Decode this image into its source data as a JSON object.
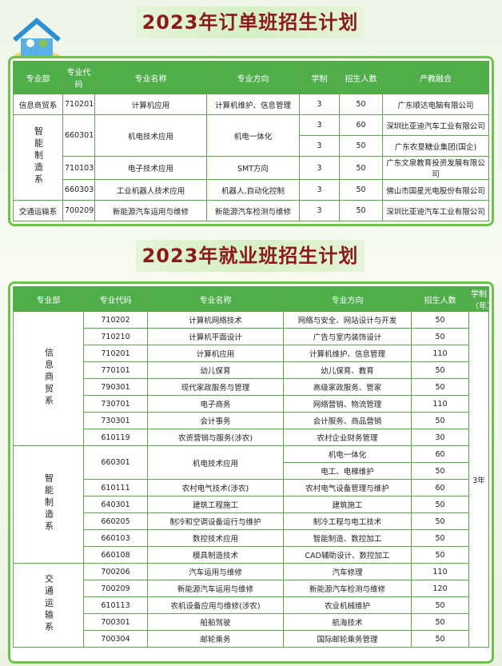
{
  "table1": {
    "title": "2023年订单班招生计划",
    "headers": [
      "专业部",
      "专业代码",
      "专业名称",
      "专业方向",
      "学制",
      "招生人数",
      "产教融合"
    ],
    "rows": [
      [
        "信息商贸系",
        "710201",
        "计算机应用",
        "计算机维护、信息管理",
        3,
        50,
        "广东顺达电脑有限公司"
      ],
      [
        "智能制造系",
        "660301",
        "机电技术应用",
        "机电一体化",
        3,
        60,
        "深圳比亚迪汽车工业有限公司"
      ],
      [
        3,
        50,
        "广东农垦糖业集团(国企)"
      ],
      [
        "710103",
        "电子技术应用",
        "SMT方向",
        3,
        50,
        "广东文泉教育投资发展有限公司"
      ],
      [
        "660303",
        "工业机器人技术应用",
        "机器人,自动化控制",
        3,
        50,
        "佛山市国星光电股份有限公司"
      ],
      [
        "交通运输系",
        "700209",
        "新能源汽车运用与维修",
        "新能源汽车检测与维修",
        3,
        50,
        "深圳比亚迪汽车工业有限公司"
      ]
    ]
  },
  "table2": {
    "title": "2023年就业班招生计划",
    "headers": [
      "专业部",
      "专业代码",
      "专业名称",
      "专业方向",
      "招生人数",
      "学制（年）"
    ],
    "rows": [
      [
        "信息商贸系",
        "710202",
        "计算机网络技术",
        "网络与安全、网站设计与开发",
        50,
        "3年"
      ],
      [
        "710210",
        "计算机平面设计",
        "广告与室内装饰设计",
        50
      ],
      [
        "710201",
        "计算机应用",
        "计算机维护、信息管理",
        110
      ],
      [
        "770101",
        "幼儿保育",
        "幼儿保育、教育",
        50
      ],
      [
        "790301",
        "现代家政服务与管理",
        "高级家政服务、管家",
        50
      ],
      [
        "730701",
        "电子商务",
        "网络营销、物流管理",
        110
      ],
      [
        "730301",
        "会计事务",
        "会计服务、商品营销",
        50
      ],
      [
        "610119",
        "农资营销与服务(涉农)",
        "农村企业财务管理",
        30
      ],
      [
        "智能制造系",
        "660301",
        "机电技术应用",
        "机电一体化",
        60
      ],
      [
        "电工、电梯维护",
        50
      ],
      [
        "610111",
        "农村电气技术(涉农)",
        "农村电气设备管理与维护",
        60
      ],
      [
        "640301",
        "建筑工程施工",
        "建筑施工",
        50
      ],
      [
        "660205",
        "制冷和空调设备运行与维护",
        "制冷工程与电工技术",
        50
      ],
      [
        "660103",
        "数控技术应用",
        "智能制造、数控加工",
        50
      ],
      [
        "660108",
        "模具制造技术",
        "CAD辅助设计、数控加工",
        50
      ],
      [
        "交通运输系",
        "700206",
        "汽车运用与维修",
        "汽车修理",
        110
      ],
      [
        "700209",
        "新能源汽车运用与维修",
        "新能源汽车检测与维修",
        120
      ],
      [
        "610113",
        "农机设备应用与维修(涉农)",
        "农业机械维护",
        50
      ],
      [
        "700301",
        "船舶驾驶",
        "航海技术",
        50
      ],
      [
        "700304",
        "邮轮乘务",
        "国际邮轮乘务管理",
        50
      ]
    ]
  }
}
